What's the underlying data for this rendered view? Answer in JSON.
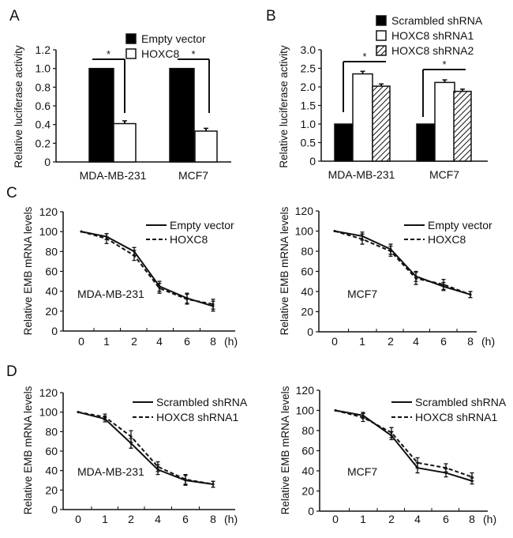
{
  "chart_data": [
    {
      "panel": "A",
      "type": "bar",
      "ylabel": "Relative luciferase activity",
      "categories": [
        "MDA-MB-231",
        "MCF7"
      ],
      "yticks": [
        "0",
        "0.2",
        "0.4",
        "0.6",
        "0.8",
        "1.0",
        "1.2"
      ],
      "ylim": [
        0,
        1.2
      ],
      "series": [
        {
          "name": "Empty vector",
          "fill": "black",
          "values": [
            1.0,
            1.0
          ],
          "errors": [
            0,
            0
          ]
        },
        {
          "name": "HOXC8",
          "fill": "white",
          "values": [
            0.41,
            0.33
          ],
          "errors": [
            0.03,
            0.03
          ]
        }
      ],
      "significance": "*",
      "legend": "top"
    },
    {
      "panel": "B",
      "type": "bar",
      "ylabel": "Relative luciferase activity",
      "categories": [
        "MDA-MB-231",
        "MCF7"
      ],
      "yticks": [
        "0",
        "0.5",
        "1.0",
        "1.5",
        "2.0",
        "2.5",
        "3.0"
      ],
      "ylim": [
        0,
        3.0
      ],
      "series": [
        {
          "name": "Scrambled shRNA",
          "fill": "black",
          "values": [
            1.0,
            1.0
          ],
          "errors": [
            0,
            0
          ]
        },
        {
          "name": "HOXC8 shRNA1",
          "fill": "white",
          "values": [
            2.35,
            2.12
          ],
          "errors": [
            0.07,
            0.07
          ]
        },
        {
          "name": "HOXC8 shRNA2",
          "fill": "hatched",
          "values": [
            2.02,
            1.88
          ],
          "errors": [
            0.06,
            0.06
          ]
        }
      ],
      "significance": "*",
      "legend": "top-right"
    },
    {
      "panel": "C",
      "type": "line",
      "annotation": "MDA-MB-231",
      "ylabel": "Relative EMB mRNA levels",
      "x": [
        "0",
        "1",
        "2",
        "4",
        "6",
        "8"
      ],
      "xunit": "(h)",
      "yticks": [
        "0",
        "20",
        "40",
        "60",
        "80",
        "100",
        "120"
      ],
      "ylim": [
        0,
        120
      ],
      "series": [
        {
          "name": "Empty vector",
          "style": "solid",
          "values": [
            100,
            95,
            80,
            45,
            33,
            25
          ],
          "errors": [
            0,
            3,
            4,
            5,
            5,
            5
          ]
        },
        {
          "name": "HOXC8",
          "style": "dashed",
          "values": [
            100,
            93,
            76,
            43,
            32,
            27
          ],
          "errors": [
            0,
            5,
            5,
            5,
            5,
            5
          ]
        }
      ],
      "legend": "top-right"
    },
    {
      "panel": "",
      "type": "line",
      "annotation": "MCF7",
      "ylabel": "Relative EMB mRNA levels",
      "x": [
        "0",
        "1",
        "2",
        "4",
        "6",
        "8"
      ],
      "xunit": "(h)",
      "yticks": [
        "0",
        "20",
        "40",
        "60",
        "80",
        "100",
        "120"
      ],
      "ylim": [
        0,
        120
      ],
      "series": [
        {
          "name": "Empty vector",
          "style": "solid",
          "values": [
            100,
            95,
            82,
            55,
            45,
            37
          ],
          "errors": [
            0,
            4,
            5,
            5,
            4,
            3
          ]
        },
        {
          "name": "HOXC8",
          "style": "dashed",
          "values": [
            100,
            92,
            80,
            53,
            47,
            37
          ],
          "errors": [
            0,
            5,
            5,
            6,
            5,
            3
          ]
        }
      ],
      "legend": "top-right"
    },
    {
      "panel": "D",
      "type": "line",
      "annotation": "MDA-MB-231",
      "ylabel": "Relative EMB mRNA levels",
      "x": [
        "0",
        "1",
        "2",
        "4",
        "6",
        "8"
      ],
      "xunit": "(h)",
      "yticks": [
        "0",
        "20",
        "40",
        "60",
        "80",
        "100",
        "120"
      ],
      "ylim": [
        0,
        120
      ],
      "series": [
        {
          "name": "Scrambled shRNA",
          "style": "solid",
          "values": [
            100,
            93,
            68,
            41,
            30,
            26
          ],
          "errors": [
            0,
            3,
            5,
            5,
            5,
            3
          ]
        },
        {
          "name": "HOXC8 shRNA1",
          "style": "dashed",
          "values": [
            100,
            95,
            75,
            44,
            31,
            26
          ],
          "errors": [
            0,
            3,
            6,
            5,
            5,
            3
          ]
        }
      ],
      "legend": "top-right"
    },
    {
      "panel": "",
      "type": "line",
      "annotation": "MCF7",
      "ylabel": "Relative EMB mRNA levels",
      "x": [
        "0",
        "1",
        "2",
        "4",
        "6",
        "8"
      ],
      "xunit": "(h)",
      "yticks": [
        "0",
        "20",
        "40",
        "60",
        "80",
        "100",
        "120"
      ],
      "ylim": [
        0,
        120
      ],
      "series": [
        {
          "name": "Scrambled shRNA",
          "style": "solid",
          "values": [
            100,
            95,
            75,
            43,
            38,
            30
          ],
          "errors": [
            0,
            3,
            4,
            5,
            4,
            3
          ]
        },
        {
          "name": "HOXC8 shRNA1",
          "style": "dashed",
          "values": [
            100,
            93,
            78,
            48,
            43,
            34
          ],
          "errors": [
            0,
            4,
            5,
            5,
            4,
            4
          ]
        }
      ],
      "legend": "top-right"
    }
  ]
}
